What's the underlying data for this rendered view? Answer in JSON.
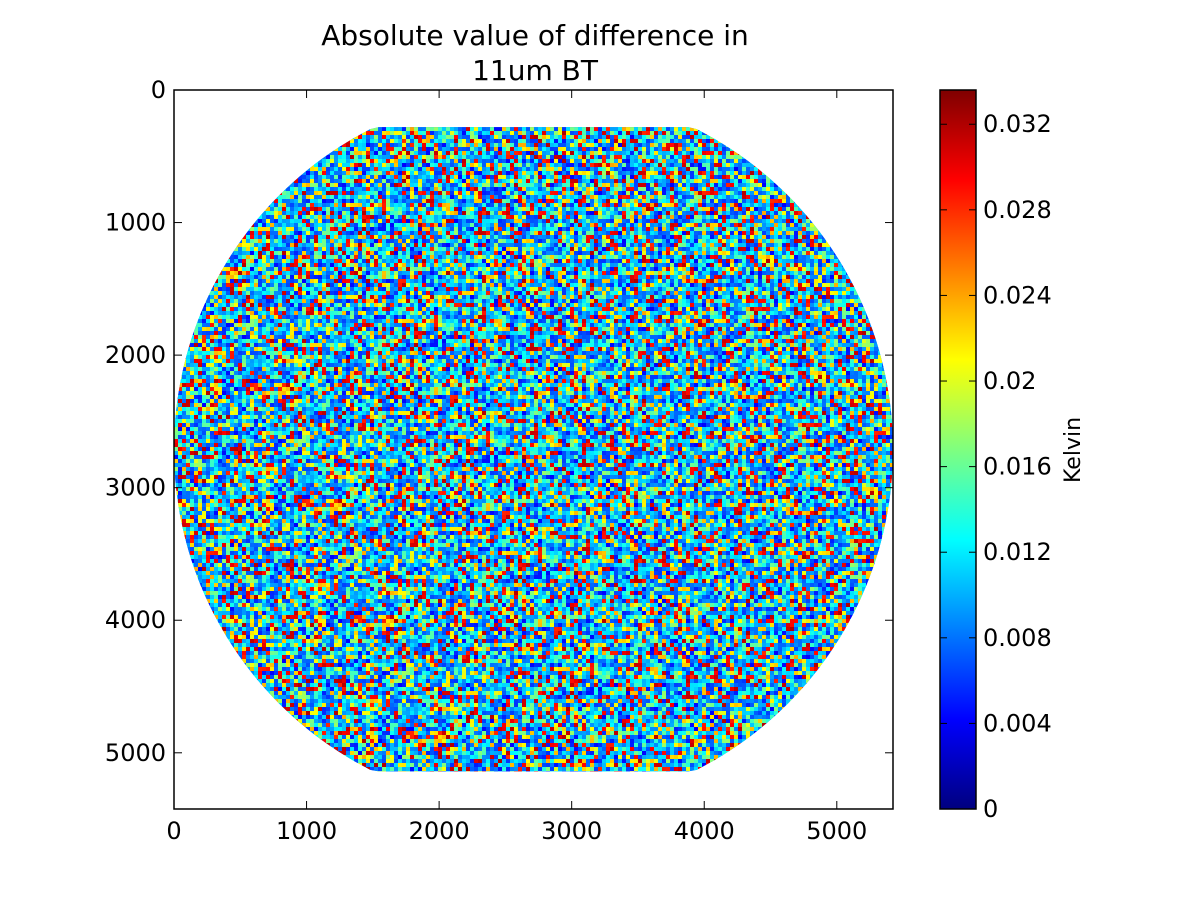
{
  "chart_data": {
    "type": "heatmap",
    "title_lines": [
      "Absolute value of difference in",
      "11um BT"
    ],
    "xlabel": "",
    "ylabel": "",
    "xlim": [
      0,
      5424
    ],
    "ylim": [
      5424,
      0
    ],
    "y_axis_inverted": true,
    "grid": false,
    "x_ticks": [
      0,
      1000,
      2000,
      3000,
      4000,
      5000
    ],
    "x_tick_labels": [
      "0",
      "1000",
      "2000",
      "3000",
      "4000",
      "5000"
    ],
    "y_ticks": [
      0,
      1000,
      2000,
      3000,
      4000,
      5000
    ],
    "y_tick_labels": [
      "0",
      "1000",
      "2000",
      "3000",
      "4000",
      "5000"
    ],
    "colormap": "jet",
    "colormap_stops": [
      "#00007f",
      "#0000ff",
      "#007fff",
      "#00ffff",
      "#7fff7f",
      "#ffff00",
      "#ff7f00",
      "#ff0000",
      "#7f0000"
    ],
    "value_range": [
      0,
      0.0336
    ],
    "dominant_values": [
      0.006,
      0.008,
      0.01,
      0.012,
      0.016,
      0.022,
      0.03
    ],
    "colorbar": {
      "label": "Kelvin",
      "ticks": [
        0,
        0.004,
        0.008,
        0.012,
        0.016,
        0.02,
        0.024,
        0.028,
        0.032
      ],
      "tick_labels": [
        "0",
        "0.004",
        "0.008",
        "0.012",
        "0.016",
        "0.02",
        "0.024",
        "0.028",
        "0.032"
      ]
    },
    "data_disk": {
      "center": [
        2712,
        2712
      ],
      "radius": 2712,
      "top_cutoff": 280,
      "bottom_cutoff": 5140
    }
  }
}
